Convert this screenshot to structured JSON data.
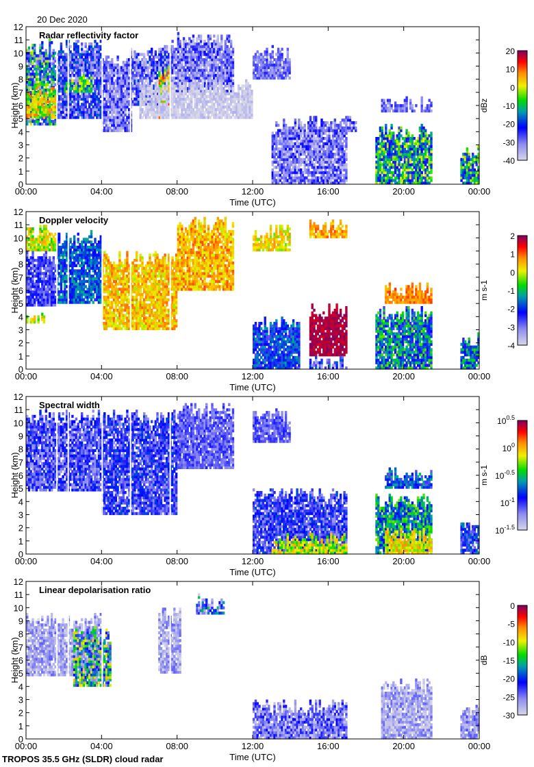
{
  "date_label": "20 Dec 2020",
  "footer": "TROPOS 35.5 GHz (SLDR) cloud radar",
  "chart_data": [
    {
      "type": "heatmap",
      "title": "Radar reflectivity factor",
      "xlabel": "Time (UTC)",
      "ylabel": "Height (km)",
      "xticks": [
        "00:00",
        "04:00",
        "08:00",
        "12:00",
        "16:00",
        "20:00",
        "00:00"
      ],
      "yticks": [
        "0",
        "1",
        "2",
        "3",
        "4",
        "5",
        "6",
        "7",
        "8",
        "9",
        "10",
        "11",
        "12"
      ],
      "xlim": [
        0,
        24
      ],
      "ylim": [
        0,
        12
      ],
      "colorbar": {
        "label": "dBz",
        "range": [
          -40,
          20
        ],
        "ticks": [
          "20",
          "10",
          "0",
          "-10",
          "-20",
          "-30",
          "-40"
        ]
      },
      "regions": [
        {
          "t": [
            0,
            1.6
          ],
          "h": [
            4.5,
            11
          ],
          "v": -18,
          "s": 18
        },
        {
          "t": [
            0,
            1.6
          ],
          "h": [
            5,
            7.5
          ],
          "v": 0,
          "s": 10
        },
        {
          "t": [
            1.6,
            4
          ],
          "h": [
            5,
            11
          ],
          "v": -26,
          "s": 10
        },
        {
          "t": [
            2,
            3.6
          ],
          "h": [
            7,
            8.3
          ],
          "v": -8,
          "s": 10
        },
        {
          "t": [
            4,
            5.6
          ],
          "h": [
            4,
            10
          ],
          "v": -30,
          "s": 8
        },
        {
          "t": [
            5.5,
            7.6
          ],
          "h": [
            6,
            10.5
          ],
          "v": -28,
          "s": 10
        },
        {
          "t": [
            7,
            7.6
          ],
          "h": [
            5,
            9
          ],
          "v": 2,
          "s": 12
        },
        {
          "t": [
            7.6,
            11
          ],
          "h": [
            7,
            11.5
          ],
          "v": -30,
          "s": 8
        },
        {
          "t": [
            6,
            12
          ],
          "h": [
            5,
            8
          ],
          "v": -38,
          "s": 3
        },
        {
          "t": [
            12,
            14
          ],
          "h": [
            8,
            10.5
          ],
          "v": -30,
          "s": 6
        },
        {
          "t": [
            13,
            17
          ],
          "h": [
            0,
            5
          ],
          "v": -30,
          "s": 8
        },
        {
          "t": [
            15,
            17.5
          ],
          "h": [
            4,
            5.2
          ],
          "v": -28,
          "s": 6
        },
        {
          "t": [
            18.5,
            21.5
          ],
          "h": [
            0,
            4.5
          ],
          "v": -12,
          "s": 14
        },
        {
          "t": [
            18.8,
            21.5
          ],
          "h": [
            5.5,
            6.6
          ],
          "v": -30,
          "s": 6
        },
        {
          "t": [
            23,
            24
          ],
          "h": [
            0,
            3
          ],
          "v": -12,
          "s": 14
        }
      ]
    },
    {
      "type": "heatmap",
      "title": "Doppler velocity",
      "xlabel": "Time (UTC)",
      "ylabel": "Height (km)",
      "xticks": [
        "00:00",
        "04:00",
        "08:00",
        "12:00",
        "16:00",
        "20:00",
        "00:00"
      ],
      "yticks": [
        "0",
        "1",
        "2",
        "3",
        "4",
        "5",
        "6",
        "7",
        "8",
        "9",
        "10",
        "11",
        "12"
      ],
      "xlim": [
        0,
        24
      ],
      "ylim": [
        0,
        12
      ],
      "colorbar": {
        "label": "m s-1",
        "range": [
          -4,
          2
        ],
        "ticks": [
          "2",
          "1",
          "0",
          "-1",
          "-2",
          "-3",
          "-4"
        ]
      },
      "regions": [
        {
          "t": [
            0,
            1.6
          ],
          "h": [
            9,
            11
          ],
          "v": 0,
          "s": 0.8
        },
        {
          "t": [
            0,
            1.6
          ],
          "h": [
            4.8,
            9
          ],
          "v": -2.6,
          "s": 0.6
        },
        {
          "t": [
            1.6,
            4
          ],
          "h": [
            5,
            10.5
          ],
          "v": -1.8,
          "s": 0.7
        },
        {
          "t": [
            4,
            8
          ],
          "h": [
            3,
            9
          ],
          "v": 0.4,
          "s": 0.6
        },
        {
          "t": [
            8,
            11
          ],
          "h": [
            6,
            11.5
          ],
          "v": 0.5,
          "s": 0.6
        },
        {
          "t": [
            12,
            14
          ],
          "h": [
            9,
            11
          ],
          "v": 0.2,
          "s": 0.6
        },
        {
          "t": [
            15,
            17
          ],
          "h": [
            10,
            11.5
          ],
          "v": 0.6,
          "s": 0.5
        },
        {
          "t": [
            0,
            1
          ],
          "h": [
            3.5,
            4.2
          ],
          "v": 0,
          "s": 0.8
        },
        {
          "t": [
            12,
            14.5
          ],
          "h": [
            0,
            4
          ],
          "v": -2,
          "s": 0.8
        },
        {
          "t": [
            15,
            17
          ],
          "h": [
            1,
            5
          ],
          "v": 1.8,
          "s": 0.2
        },
        {
          "t": [
            15,
            17
          ],
          "h": [
            0,
            1
          ],
          "v": -2.5,
          "s": 1
        },
        {
          "t": [
            19,
            21.5
          ],
          "h": [
            5,
            6.6
          ],
          "v": 0.8,
          "s": 0.4
        },
        {
          "t": [
            18.5,
            21.5
          ],
          "h": [
            0,
            4.7
          ],
          "v": -1.5,
          "s": 1.2
        },
        {
          "t": [
            23,
            24
          ],
          "h": [
            0,
            2.8
          ],
          "v": -1.5,
          "s": 1
        }
      ]
    },
    {
      "type": "heatmap",
      "title": "Spectral width",
      "xlabel": "Time (UTC)",
      "ylabel": "Height (km)",
      "xticks": [
        "00:00",
        "04:00",
        "08:00",
        "12:00",
        "16:00",
        "20:00",
        "00:00"
      ],
      "yticks": [
        "0",
        "1",
        "2",
        "3",
        "4",
        "5",
        "6",
        "7",
        "8",
        "9",
        "10",
        "11",
        "12"
      ],
      "xlim": [
        0,
        24
      ],
      "ylim": [
        0,
        12
      ],
      "colorbar": {
        "label": "m s-1",
        "scale": "log10",
        "range": [
          -1.5,
          0.5
        ],
        "ticks": [
          "10^0.5",
          "10^0",
          "10^-0.5",
          "10^-1",
          "10^-1.5"
        ]
      },
      "regions": [
        {
          "t": [
            0,
            4
          ],
          "h": [
            4.8,
            11
          ],
          "v": -1.05,
          "s": 0.25
        },
        {
          "t": [
            4,
            8
          ],
          "h": [
            3,
            11
          ],
          "v": -1.0,
          "s": 0.25
        },
        {
          "t": [
            8,
            11
          ],
          "h": [
            6.5,
            11.5
          ],
          "v": -1.1,
          "s": 0.15
        },
        {
          "t": [
            12,
            14
          ],
          "h": [
            8.5,
            11
          ],
          "v": -1.1,
          "s": 0.15
        },
        {
          "t": [
            12,
            17
          ],
          "h": [
            0,
            5
          ],
          "v": -1.0,
          "s": 0.25
        },
        {
          "t": [
            13,
            17
          ],
          "h": [
            0,
            1.5
          ],
          "v": -0.2,
          "s": 0.25
        },
        {
          "t": [
            19,
            21.5
          ],
          "h": [
            5,
            6.6
          ],
          "v": -0.8,
          "s": 0.3
        },
        {
          "t": [
            18.5,
            21.5
          ],
          "h": [
            0,
            4.7
          ],
          "v": -0.6,
          "s": 0.35
        },
        {
          "t": [
            19,
            21.5
          ],
          "h": [
            0,
            2
          ],
          "v": -0.1,
          "s": 0.2
        },
        {
          "t": [
            23,
            24
          ],
          "h": [
            0,
            2.8
          ],
          "v": -0.9,
          "s": 0.3
        }
      ]
    },
    {
      "type": "heatmap",
      "title": "Linear depolarisation ratio",
      "xlabel": "Time (UTC)",
      "ylabel": "Height (km)",
      "xticks": [
        "00:00",
        "04:00",
        "08:00",
        "12:00",
        "16:00",
        "20:00",
        "00:00"
      ],
      "yticks": [
        "0",
        "1",
        "2",
        "3",
        "4",
        "5",
        "6",
        "7",
        "8",
        "9",
        "10",
        "11",
        "12"
      ],
      "xlim": [
        0,
        24
      ],
      "ylim": [
        0,
        12
      ],
      "colorbar": {
        "label": "dB",
        "range": [
          -30,
          0
        ],
        "ticks": [
          "0",
          "-5",
          "-10",
          "-15",
          "-20",
          "-25",
          "-30"
        ]
      },
      "regions": [
        {
          "t": [
            0,
            4
          ],
          "h": [
            4.8,
            9.5
          ],
          "v": -27,
          "s": 3
        },
        {
          "t": [
            2.5,
            4.5
          ],
          "h": [
            4,
            8.5
          ],
          "v": -18,
          "s": 10
        },
        {
          "t": [
            7,
            8.2
          ],
          "h": [
            5,
            10
          ],
          "v": -27,
          "s": 3
        },
        {
          "t": [
            9,
            10.5
          ],
          "h": [
            9.5,
            11
          ],
          "v": -22,
          "s": 8
        },
        {
          "t": [
            12,
            17
          ],
          "h": [
            0,
            3
          ],
          "v": -25,
          "s": 4
        },
        {
          "t": [
            18.8,
            21.5
          ],
          "h": [
            0,
            4.5
          ],
          "v": -27,
          "s": 3
        },
        {
          "t": [
            23,
            24
          ],
          "h": [
            0,
            2.5
          ],
          "v": -26,
          "s": 3
        }
      ]
    }
  ]
}
